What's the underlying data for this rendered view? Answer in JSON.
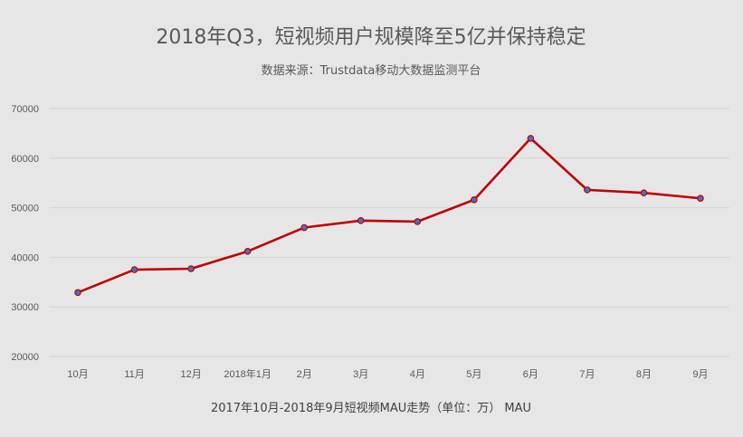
{
  "chart_data": {
    "type": "line",
    "title": "2018年Q3，短视频用户规模降至5亿并保持稳定",
    "subtitle": "数据来源：Trustdata移动大数据监测平台",
    "xlabel": "2017年10月-2018年9月短视频MAU走势（单位：万） MAU",
    "ylabel": "",
    "categories": [
      "10月",
      "11月",
      "12月",
      "2018年1月",
      "2月",
      "3月",
      "4月",
      "5月",
      "6月",
      "7月",
      "8月",
      "9月"
    ],
    "series": [
      {
        "values": [
          32900,
          37500,
          37700,
          41200,
          46000,
          47400,
          47200,
          51600,
          64000,
          53600,
          53000,
          51900
        ]
      }
    ],
    "ylim": [
      20000,
      70000
    ],
    "yticks": [
      20000,
      30000,
      40000,
      50000,
      60000,
      70000
    ],
    "grid": true,
    "legend": "none",
    "colors": {
      "line": "#c00000",
      "marker": "#4472c4",
      "grid": "#d3d3d3",
      "background": "#e6e6e6"
    }
  }
}
